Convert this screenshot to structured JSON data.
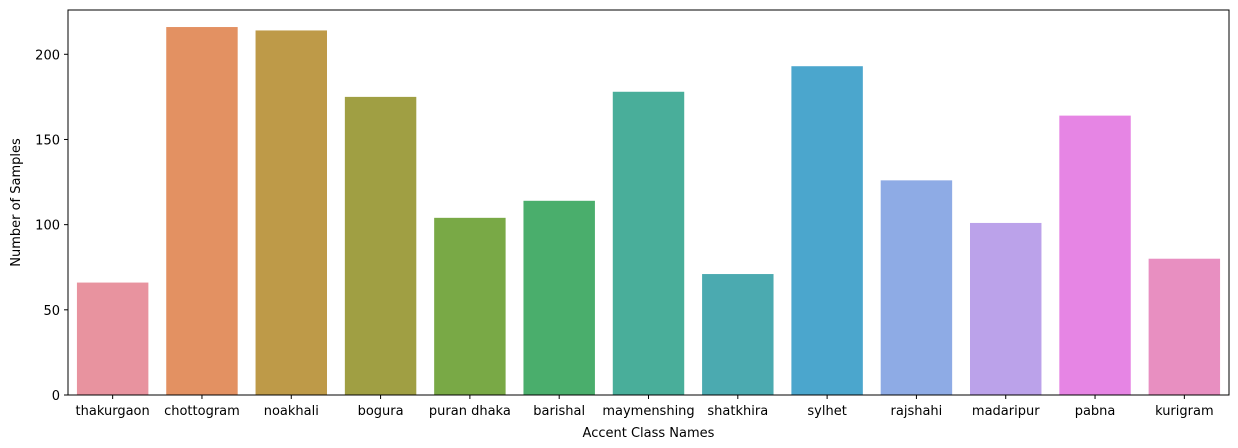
{
  "chart_data": {
    "type": "bar",
    "title": "",
    "xlabel": "Accent Class Names",
    "ylabel": "Number of Samples",
    "ylim": [
      0,
      226
    ],
    "yticks": [
      0,
      50,
      100,
      150,
      200
    ],
    "grid": false,
    "categories": [
      "thakurgaon",
      "chottogram",
      "noakhali",
      "bogura",
      "puran dhaka",
      "barishal",
      "maymenshing",
      "shatkhira",
      "sylhet",
      "rajshahi",
      "madaripur",
      "pabna",
      "kurigram"
    ],
    "values": [
      66,
      216,
      214,
      175,
      104,
      114,
      178,
      71,
      193,
      126,
      101,
      164,
      80
    ],
    "colors": [
      "#e8939f",
      "#e39162",
      "#be9a48",
      "#a09f43",
      "#79a946",
      "#4aae6c",
      "#49ae9a",
      "#4baab0",
      "#4ba6cd",
      "#8eabe5",
      "#bba2ea",
      "#e685e4",
      "#e88fc1"
    ]
  }
}
